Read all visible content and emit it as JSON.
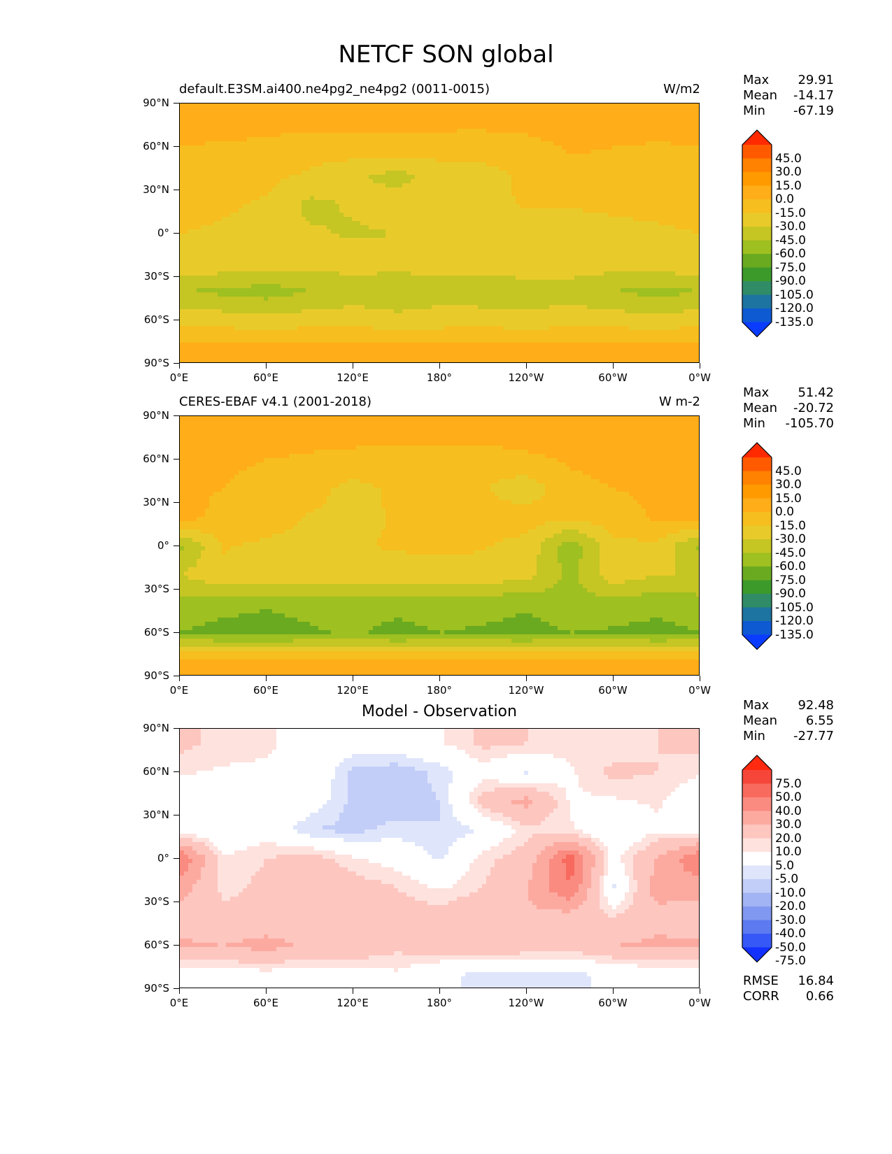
{
  "figure": {
    "title": "NETCF SON global"
  },
  "axes": {
    "yticks": [
      "90°N",
      "60°N",
      "30°N",
      "0°",
      "30°S",
      "60°S",
      "90°S"
    ],
    "xticks": [
      "0°E",
      "60°E",
      "120°E",
      "180°",
      "120°W",
      "60°W",
      "0°W"
    ]
  },
  "panels": [
    {
      "title_left": "default.E3SM.ai400.ne4pg2_ne4pg2 (0011-0015)",
      "title_right": "W/m2",
      "stats": {
        "max_label": "Max",
        "max": "29.91",
        "mean_label": "Mean",
        "mean": "-14.17",
        "min_label": "Min",
        "min": "-67.19"
      },
      "colorbar": {
        "labels": [
          "45.0",
          "30.0",
          "15.0",
          "0.0",
          "-15.0",
          "-30.0",
          "-45.0",
          "-60.0",
          "-75.0",
          "-90.0",
          "-105.0",
          "-120.0",
          "-135.0"
        ],
        "colors": [
          "#ff2a00",
          "#ff5a00",
          "#ff8200",
          "#ff9a00",
          "#ffad19",
          "#f6be1e",
          "#e8cb2a",
          "#c5c524",
          "#9ec020",
          "#6aaa20",
          "#3c9a2a",
          "#2f8c66",
          "#1e74a0",
          "#0e5ad2",
          "#0a3cff"
        ]
      }
    },
    {
      "title_left": "CERES-EBAF v4.1 (2001-2018)",
      "title_right": "W m-2",
      "stats": {
        "max_label": "Max",
        "max": "51.42",
        "mean_label": "Mean",
        "mean": "-20.72",
        "min_label": "Min",
        "min": "-105.70"
      },
      "colorbar": {
        "labels": [
          "45.0",
          "30.0",
          "15.0",
          "0.0",
          "-15.0",
          "-30.0",
          "-45.0",
          "-60.0",
          "-75.0",
          "-90.0",
          "-105.0",
          "-120.0",
          "-135.0"
        ],
        "colors": [
          "#ff2a00",
          "#ff5a00",
          "#ff8200",
          "#ff9a00",
          "#ffad19",
          "#f6be1e",
          "#e8cb2a",
          "#c5c524",
          "#9ec020",
          "#6aaa20",
          "#3c9a2a",
          "#2f8c66",
          "#1e74a0",
          "#0e5ad2",
          "#0a3cff"
        ]
      }
    },
    {
      "title_center": "Model - Observation",
      "stats": {
        "max_label": "Max",
        "max": "92.48",
        "mean_label": "Mean",
        "mean": "6.55",
        "min_label": "Min",
        "min": "-27.77"
      },
      "extra_stats": {
        "rmse_label": "RMSE",
        "rmse": "16.84",
        "corr_label": "CORR",
        "corr": "0.66"
      },
      "colorbar": {
        "labels": [
          "75.0",
          "50.0",
          "40.0",
          "30.0",
          "20.0",
          "10.0",
          "5.0",
          "-5.0",
          "-10.0",
          "-20.0",
          "-30.0",
          "-40.0",
          "-50.0",
          "-75.0"
        ],
        "colors": [
          "#ff2a10",
          "#f6463a",
          "#f86a5e",
          "#fa8b80",
          "#fcaaa0",
          "#fdc6bf",
          "#fee2de",
          "#ffffff",
          "#dfe6fb",
          "#c2cef8",
          "#a3b4f4",
          "#8198f0",
          "#5d7af0",
          "#3658f6",
          "#1230ff"
        ]
      }
    }
  ],
  "chart_data": [
    {
      "type": "heatmap",
      "title": "default.E3SM.ai400.ne4pg2_ne4pg2 (0011-0015)",
      "units": "W/m2",
      "x_ticks": [
        "0°E",
        "60°E",
        "120°E",
        "180°",
        "120°W",
        "60°W",
        "0°W"
      ],
      "y_ticks": [
        "90°N",
        "60°N",
        "30°N",
        "0°",
        "30°S",
        "60°S",
        "90°S"
      ],
      "xlim": [
        0,
        360
      ],
      "ylim": [
        -90,
        90
      ],
      "colorbar_levels": [
        -135,
        -120,
        -105,
        -90,
        -75,
        -60,
        -45,
        -30,
        -15,
        0,
        15,
        30,
        45
      ],
      "max": 29.91,
      "mean": -14.17,
      "min": -67.19,
      "lat": [
        80,
        60,
        40,
        20,
        0,
        -20,
        -40,
        -60,
        -80
      ],
      "lon": [
        0,
        30,
        60,
        90,
        120,
        150,
        180,
        210,
        240,
        270,
        300,
        330,
        360
      ],
      "values": [
        [
          10,
          8,
          6,
          5,
          4,
          4,
          5,
          6,
          8,
          10,
          12,
          10,
          10
        ],
        [
          0,
          -2,
          -3,
          -6,
          -5,
          -5,
          -6,
          -8,
          -6,
          2,
          0,
          -2,
          0
        ],
        [
          -2,
          -6,
          -10,
          -18,
          -28,
          -35,
          -25,
          -20,
          -12,
          -6,
          -4,
          -2,
          -2
        ],
        [
          -8,
          -12,
          -18,
          -34,
          -28,
          -22,
          -20,
          -18,
          -14,
          -14,
          -12,
          -10,
          -8
        ],
        [
          -15,
          -18,
          -22,
          -28,
          -32,
          -30,
          -25,
          -22,
          -20,
          -22,
          -20,
          -18,
          -15
        ],
        [
          -15,
          -20,
          -22,
          -25,
          -22,
          -24,
          -22,
          -20,
          -18,
          -20,
          -22,
          -22,
          -15
        ],
        [
          -45,
          -48,
          -52,
          -45,
          -40,
          -42,
          -38,
          -42,
          -40,
          -38,
          -45,
          -50,
          -45
        ],
        [
          -20,
          -22,
          -25,
          -22,
          -20,
          -25,
          -22,
          -20,
          -25,
          -20,
          -22,
          -25,
          -20
        ],
        [
          5,
          6,
          8,
          6,
          5,
          6,
          4,
          4,
          5,
          6,
          8,
          6,
          5
        ]
      ]
    },
    {
      "type": "heatmap",
      "title": "CERES-EBAF v4.1 (2001-2018)",
      "units": "W m-2",
      "x_ticks": [
        "0°E",
        "60°E",
        "120°E",
        "180°",
        "120°W",
        "60°W",
        "0°W"
      ],
      "y_ticks": [
        "90°N",
        "60°N",
        "30°N",
        "0°",
        "30°S",
        "60°S",
        "90°S"
      ],
      "xlim": [
        0,
        360
      ],
      "ylim": [
        -90,
        90
      ],
      "colorbar_levels": [
        -135,
        -120,
        -105,
        -90,
        -75,
        -60,
        -45,
        -30,
        -15,
        0,
        15,
        30,
        45
      ],
      "max": 51.42,
      "mean": -20.72,
      "min": -105.7,
      "lat": [
        80,
        60,
        40,
        20,
        0,
        -20,
        -40,
        -60,
        -80
      ],
      "lon": [
        0,
        30,
        60,
        90,
        120,
        150,
        180,
        210,
        240,
        270,
        300,
        330,
        360
      ],
      "values": [
        [
          12,
          10,
          8,
          6,
          6,
          5,
          6,
          8,
          10,
          12,
          14,
          12,
          12
        ],
        [
          4,
          2,
          0,
          -2,
          -4,
          -5,
          -6,
          -8,
          -4,
          2,
          4,
          2,
          4
        ],
        [
          2,
          0,
          -4,
          -10,
          -20,
          -12,
          -10,
          -14,
          -24,
          -4,
          0,
          2,
          2
        ],
        [
          6,
          -4,
          -8,
          -16,
          -18,
          -14,
          -12,
          -10,
          -8,
          -12,
          -6,
          2,
          6
        ],
        [
          -50,
          -14,
          -18,
          -20,
          -16,
          -14,
          -12,
          -14,
          -20,
          -55,
          -20,
          -18,
          -50
        ],
        [
          -30,
          -18,
          -16,
          -22,
          -18,
          -20,
          -22,
          -20,
          -24,
          -50,
          -20,
          -30,
          -30
        ],
        [
          -52,
          -55,
          -58,
          -55,
          -52,
          -55,
          -52,
          -55,
          -58,
          -50,
          -52,
          -55,
          -52
        ],
        [
          -60,
          -65,
          -68,
          -62,
          -58,
          -65,
          -60,
          -62,
          -65,
          -60,
          -62,
          -65,
          -60
        ],
        [
          6,
          8,
          10,
          8,
          6,
          8,
          6,
          6,
          8,
          8,
          10,
          8,
          6
        ]
      ]
    },
    {
      "type": "heatmap",
      "title": "Model - Observation",
      "x_ticks": [
        "0°E",
        "60°E",
        "120°E",
        "180°",
        "120°W",
        "60°W",
        "0°W"
      ],
      "y_ticks": [
        "90°N",
        "60°N",
        "30°N",
        "0°",
        "30°S",
        "60°S",
        "90°S"
      ],
      "xlim": [
        0,
        360
      ],
      "ylim": [
        -90,
        90
      ],
      "colorbar_levels": [
        -75,
        -50,
        -40,
        -30,
        -20,
        -10,
        -5,
        5,
        10,
        20,
        30,
        40,
        50,
        75
      ],
      "max": 92.48,
      "mean": 6.55,
      "min": -27.77,
      "rmse": 16.84,
      "corr": 0.66,
      "lat": [
        80,
        60,
        40,
        20,
        0,
        -20,
        -40,
        -60,
        -80
      ],
      "lon": [
        0,
        30,
        60,
        90,
        120,
        150,
        180,
        210,
        240,
        270,
        300,
        330,
        360
      ],
      "values": [
        [
          12,
          8,
          6,
          2,
          0,
          0,
          4,
          12,
          10,
          8,
          6,
          10,
          12
        ],
        [
          6,
          4,
          4,
          4,
          -12,
          -14,
          -8,
          2,
          -6,
          4,
          12,
          10,
          6
        ],
        [
          -2,
          2,
          4,
          0,
          -12,
          -14,
          -10,
          14,
          24,
          4,
          4,
          6,
          -2
        ],
        [
          2,
          -4,
          2,
          -10,
          -12,
          -8,
          -10,
          -4,
          8,
          6,
          -4,
          4,
          2
        ],
        [
          40,
          6,
          10,
          14,
          6,
          2,
          -6,
          8,
          14,
          45,
          2,
          20,
          40
        ],
        [
          25,
          8,
          12,
          18,
          14,
          10,
          4,
          10,
          20,
          40,
          -6,
          25,
          25
        ],
        [
          14,
          12,
          12,
          14,
          14,
          14,
          14,
          18,
          18,
          16,
          10,
          16,
          14
        ],
        [
          22,
          20,
          24,
          18,
          18,
          12,
          16,
          18,
          16,
          14,
          20,
          22,
          22
        ],
        [
          -2,
          0,
          2,
          0,
          0,
          4,
          -4,
          -6,
          -8,
          -6,
          -4,
          0,
          -2
        ]
      ]
    }
  ]
}
